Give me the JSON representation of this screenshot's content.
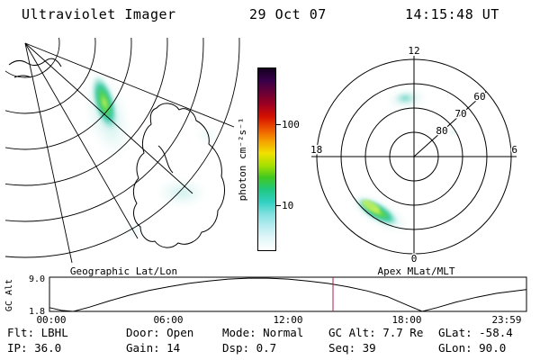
{
  "header": {
    "title": "Ultraviolet Imager",
    "date": "29 Oct 07",
    "time": "14:15:48 UT"
  },
  "colorbar": {
    "label": "photon cm⁻²s⁻¹",
    "tick_top": "100",
    "tick_bottom": "10",
    "colors": [
      "#14001f",
      "#38004a",
      "#6a0036",
      "#a00020",
      "#d41000",
      "#ee5500",
      "#f5a000",
      "#f0e000",
      "#a8e000",
      "#40c820",
      "#20c880",
      "#30d0c0",
      "#80e0e0",
      "#b8ecf0",
      "#e2f6f8",
      "#ffffff"
    ]
  },
  "map_panel": {
    "caption": "Geographic Lat/Lon"
  },
  "polar_panel": {
    "caption": "Apex MLat/MLT",
    "mlt_top": "12",
    "mlt_left": "18",
    "mlt_right": "6",
    "mlt_bottom": "0",
    "lat_60": "60",
    "lat_70": "70",
    "lat_80": "80"
  },
  "strip_chart": {
    "ylabel": "GC Alt",
    "ytick_top": "9.0",
    "ytick_bottom": "1.8",
    "xticks": [
      "00:00",
      "06:00",
      "12:00",
      "18:00",
      "23:59"
    ],
    "marker_color": "#aa2244"
  },
  "status": {
    "row1": [
      "Flt: LBHL",
      "Door: Open",
      "Mode: Normal",
      "GC Alt: 7.7 Re",
      "GLat: -58.4"
    ],
    "row2": [
      "IP: 36.0",
      "Gain: 14",
      "Dsp: 0.7",
      "Seq: 39",
      "GLon: 90.0"
    ]
  },
  "chart_data": [
    {
      "type": "heatmap",
      "title": "Geographic Lat/Lon",
      "description": "UV auroral emission mapped over geographic coordinates with latitude/longitude graticule and coastlines",
      "colorbar": {
        "label": "photon cm-2 s-1",
        "scale": "log",
        "ticks": [
          10,
          100
        ]
      },
      "features": [
        {
          "name": "bright auroral arc",
          "location": "upper left of panel",
          "peak_value_approx": 100
        },
        {
          "name": "diffuse emission patch",
          "location": "center right of panel",
          "value_approx": 10
        }
      ]
    },
    {
      "type": "heatmap",
      "title": "Apex MLat/MLT",
      "description": "UV auroral emission in apex magnetic coordinates, polar dial plot",
      "axes": {
        "mlt_labels": [
          12,
          18,
          6,
          0
        ],
        "mlat_rings": [
          80,
          70,
          60,
          50
        ]
      },
      "features": [
        {
          "name": "bright auroral arc",
          "location": "19-21 MLT near 60-65 MLat",
          "peak_value_approx": 100
        },
        {
          "name": "diffuse dayside emission",
          "location": "11-13 MLT near 70 MLat",
          "value_approx": 10
        }
      ]
    },
    {
      "type": "line",
      "title": "GC Alt vs UT",
      "ylabel": "GC Alt",
      "ylim": [
        1.8,
        9.0
      ],
      "xlim_hours": [
        0,
        24
      ],
      "t_hours": [
        0,
        0.6,
        1.2,
        2,
        3,
        4,
        5,
        6,
        7,
        8,
        9,
        10,
        11,
        12,
        13,
        14,
        15,
        16,
        17,
        18,
        18.75,
        19.5,
        20.5,
        21.5,
        22.5,
        23.98
      ],
      "alt_re": [
        2.6,
        2.0,
        1.8,
        2.7,
        4.0,
        5.2,
        6.2,
        7.0,
        7.7,
        8.2,
        8.6,
        8.8,
        8.8,
        8.6,
        8.2,
        7.7,
        7.0,
        6.1,
        4.9,
        3.1,
        1.8,
        2.6,
        3.8,
        4.8,
        5.6,
        6.4
      ],
      "marker_hours": 14.2633,
      "marker_label": "14:15:48 UT"
    }
  ]
}
